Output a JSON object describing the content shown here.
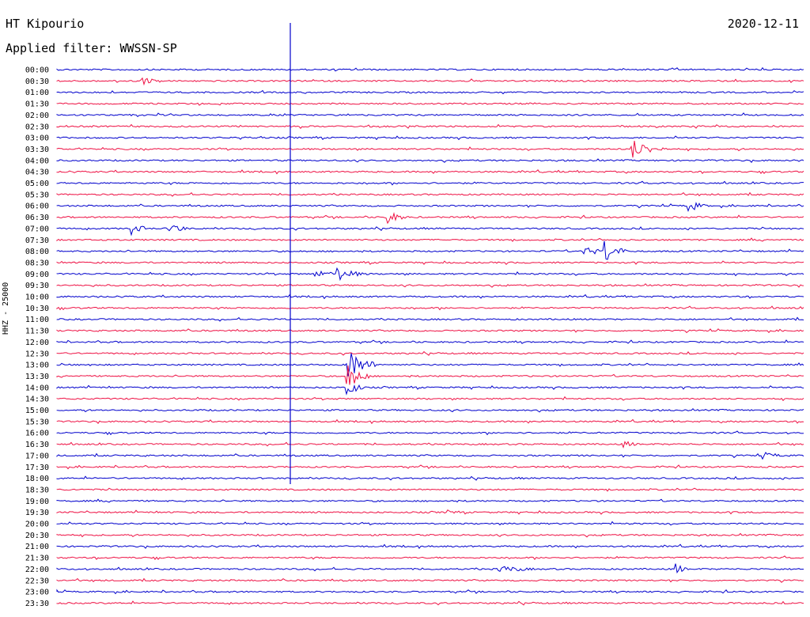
{
  "header": {
    "station": "HT Kipourio",
    "date": "2020-12-11",
    "filter": "Applied filter: WWSSN-SP"
  },
  "chart_data": {
    "type": "line",
    "title": "HT Kipourio",
    "ylabel": "HHZ - 25000",
    "y_tick_labels": [
      "00:00",
      "00:30",
      "01:00",
      "01:30",
      "02:00",
      "02:30",
      "03:00",
      "03:30",
      "04:00",
      "04:30",
      "05:00",
      "05:30",
      "06:00",
      "06:30",
      "07:00",
      "07:30",
      "08:00",
      "08:30",
      "09:00",
      "09:30",
      "10:00",
      "10:30",
      "11:00",
      "11:30",
      "12:00",
      "12:30",
      "13:00",
      "13:30",
      "14:00",
      "14:30",
      "15:00",
      "15:30",
      "16:00",
      "16:30",
      "17:00",
      "17:30",
      "18:00",
      "18:30",
      "19:00",
      "19:30",
      "20:00",
      "20:30",
      "21:00",
      "21:30",
      "22:00",
      "22:30",
      "23:00",
      "23:30"
    ],
    "series_colors": [
      "#0000cc",
      "#ee1144"
    ],
    "x_range_minutes": [
      0,
      30
    ],
    "current_time_marker": "18:00",
    "grid": false,
    "legend": "none"
  }
}
